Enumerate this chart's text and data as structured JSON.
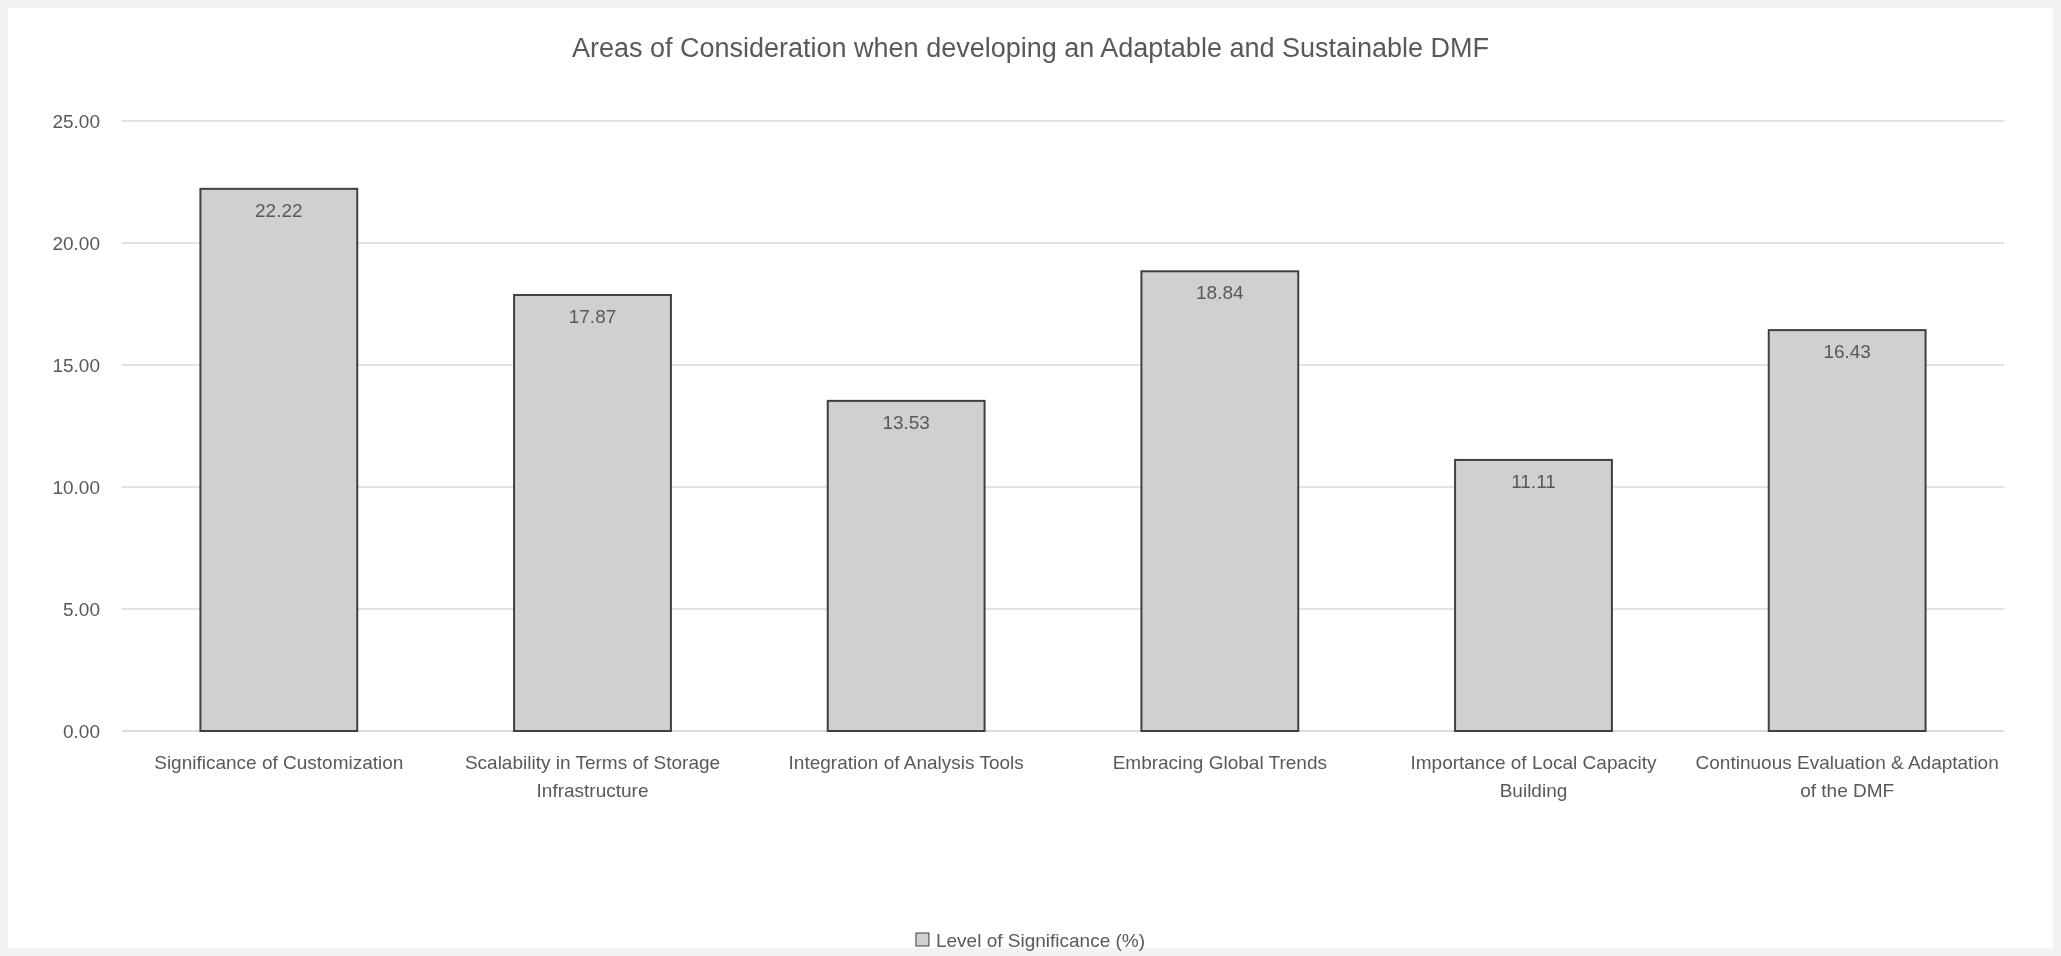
{
  "chart_data": {
    "type": "bar",
    "title": "Areas of Consideration when developing an Adaptable and Sustainable DMF",
    "categories": [
      "Significance of Customization",
      "Scalability in Terms of Storage Infrastructure",
      "Integration of Analysis Tools",
      "Embracing Global Trends",
      "Importance of Local Capacity Building",
      "Continuous Evaluation & Adaptation of the DMF"
    ],
    "series": [
      {
        "name": "Level of Significance (%)",
        "color": "#d0d0d0",
        "values": [
          22.22,
          17.87,
          13.53,
          18.84,
          11.11,
          16.43
        ]
      }
    ],
    "ylim": [
      0,
      25
    ],
    "yticks": [
      {
        "value": 0,
        "label": "0.00"
      },
      {
        "value": 5,
        "label": "5.00"
      },
      {
        "value": 10,
        "label": "10.00"
      },
      {
        "value": 15,
        "label": "15.00"
      },
      {
        "value": 20,
        "label": "20.00"
      },
      {
        "value": 25,
        "label": "25.00"
      }
    ],
    "grid": "y",
    "legend": "bottom",
    "data_labels": true
  }
}
